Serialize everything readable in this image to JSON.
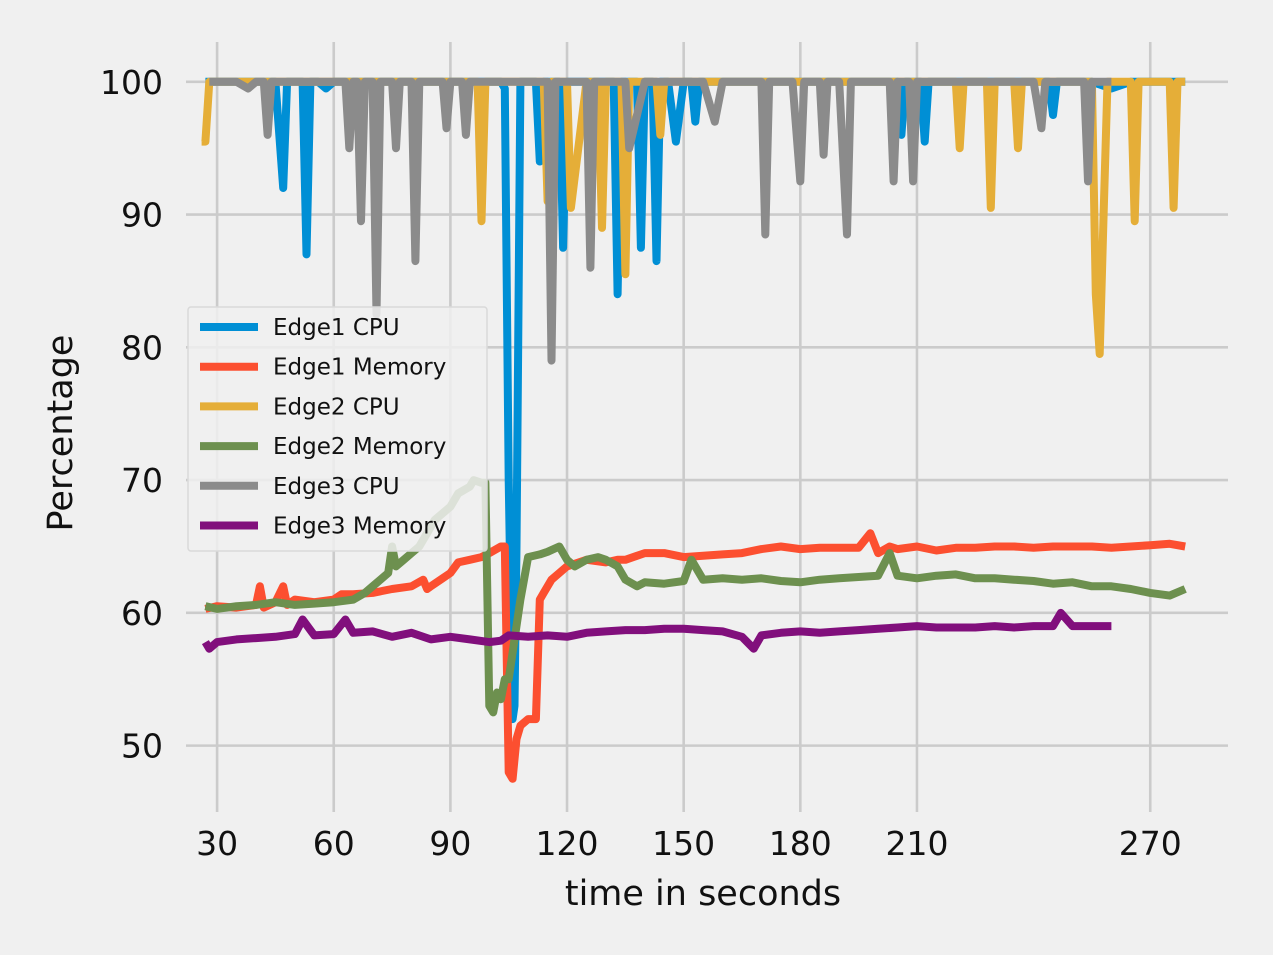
{
  "chart_data": {
    "type": "line",
    "title": "",
    "xlabel": "time in seconds",
    "ylabel": "Percentage",
    "xlim": [
      22,
      290
    ],
    "ylim": [
      45,
      103
    ],
    "xticks": [
      30,
      60,
      90,
      120,
      150,
      180,
      210,
      270
    ],
    "yticks": [
      50,
      60,
      70,
      80,
      90,
      100
    ],
    "grid": true,
    "legend_position": "center-left",
    "series": [
      {
        "name": "Edge1 CPU",
        "color": "#008fd5",
        "x": [
          27,
          45,
          47,
          48,
          49,
          51,
          52,
          53,
          54,
          56,
          58,
          60,
          62,
          65,
          68,
          72,
          76,
          80,
          84,
          88,
          92,
          96,
          100,
          103,
          104,
          105,
          106,
          106.5,
          107,
          108,
          110,
          112,
          113,
          114,
          116,
          118,
          119,
          120,
          122,
          124,
          126,
          128,
          130,
          132,
          133,
          134,
          136,
          138,
          139,
          140,
          142,
          143,
          144,
          146,
          148,
          150,
          152,
          153,
          154,
          156,
          158,
          160,
          165,
          170,
          175,
          180,
          185,
          190,
          195,
          200,
          205,
          206,
          207,
          208,
          210,
          211,
          212,
          213,
          215,
          220,
          225,
          230,
          235,
          240,
          244,
          245,
          246,
          250,
          255,
          260,
          265,
          270,
          275,
          279
        ],
        "y": [
          100,
          100,
          92,
          100,
          100,
          100,
          100,
          87,
          100,
          100,
          99.5,
          100,
          100,
          100,
          100,
          100,
          100,
          100,
          100,
          100,
          100,
          100,
          100,
          100,
          99.5,
          70,
          52,
          53,
          65,
          100,
          100,
          100,
          94,
          100,
          100,
          100,
          87.5,
          100,
          100,
          100,
          100,
          100,
          100,
          100,
          84,
          100,
          100,
          100,
          87.5,
          100,
          100,
          86.5,
          100,
          100,
          95.5,
          100,
          100,
          97,
          100,
          100,
          100,
          100,
          100,
          100,
          100,
          100,
          100,
          100,
          100,
          100,
          100,
          96,
          100,
          100,
          100,
          100,
          95.5,
          100,
          100,
          100,
          100,
          100,
          100,
          100,
          100,
          97.5,
          100,
          100,
          100,
          99.5,
          100,
          100,
          100,
          100
        ]
      },
      {
        "name": "Edge1 Memory",
        "color": "#fc4f30",
        "x": [
          27,
          30,
          35,
          40,
          41,
          42,
          45,
          47,
          48,
          50,
          55,
          60,
          62,
          65,
          70,
          75,
          80,
          83,
          84,
          85,
          88,
          90,
          92,
          95,
          98,
          100,
          103,
          104,
          105,
          106,
          107,
          108,
          110,
          112,
          113,
          114,
          116,
          118,
          120,
          125,
          130,
          133,
          135,
          140,
          145,
          150,
          155,
          160,
          165,
          170,
          175,
          180,
          185,
          190,
          195,
          198,
          200,
          203,
          205,
          210,
          215,
          220,
          225,
          230,
          235,
          240,
          245,
          250,
          255,
          260,
          265,
          270,
          275,
          279
        ],
        "y": [
          60.3,
          60.5,
          60.4,
          60.6,
          62,
          60.4,
          60.8,
          62,
          60.6,
          61,
          60.8,
          61,
          61.4,
          61.4,
          61.5,
          61.8,
          62,
          62.5,
          61.8,
          62,
          62.6,
          63,
          63.8,
          64,
          64.2,
          64.5,
          65,
          65,
          48,
          47.5,
          50.5,
          51.5,
          52,
          52,
          61,
          61.5,
          62.5,
          63,
          63.5,
          64,
          63.8,
          64,
          64,
          64.5,
          64.5,
          64.2,
          64.3,
          64.4,
          64.5,
          64.8,
          65,
          64.8,
          64.9,
          64.9,
          64.9,
          66,
          64.5,
          65,
          64.8,
          65,
          64.7,
          64.9,
          64.9,
          65,
          65,
          64.9,
          65,
          65,
          65,
          64.9,
          65,
          65.1,
          65.2,
          65
        ]
      },
      {
        "name": "Edge2 CPU",
        "color": "#e5ae38",
        "x": [
          26,
          27,
          28,
          30,
          35,
          40,
          45,
          50,
          55,
          60,
          65,
          70,
          75,
          80,
          85,
          90,
          95,
          97,
          98,
          99,
          100,
          103,
          105,
          110,
          114,
          115,
          116,
          117,
          120,
          121,
          125,
          128,
          129,
          130,
          134,
          135,
          136,
          140,
          143,
          144,
          145,
          150,
          155,
          160,
          165,
          170,
          175,
          180,
          185,
          190,
          195,
          200,
          205,
          210,
          215,
          220,
          221,
          222,
          225,
          228,
          229,
          230,
          235,
          236,
          237,
          240,
          245,
          250,
          255,
          256,
          257,
          258,
          259,
          260,
          262,
          265,
          266,
          267,
          270,
          272,
          274,
          275,
          276,
          277,
          279
        ],
        "y": [
          95.5,
          95.5,
          100,
          100,
          100,
          100,
          100,
          100,
          100,
          100,
          100,
          100,
          100,
          100,
          100,
          100,
          100,
          100,
          89.5,
          100,
          100,
          100,
          100,
          100,
          100,
          91,
          100,
          100,
          100,
          90.5,
          100,
          100,
          89,
          100,
          100,
          85.5,
          100,
          100,
          100,
          96,
          100,
          100,
          100,
          100,
          100,
          100,
          100,
          100,
          100,
          100,
          100,
          100,
          100,
          100,
          100,
          100,
          95,
          100,
          100,
          100,
          90.5,
          100,
          100,
          95,
          100,
          100,
          100,
          100,
          100,
          84,
          79.5,
          90,
          100,
          100,
          100,
          100,
          89.5,
          100,
          100,
          100,
          100,
          100,
          90.5,
          100,
          100
        ]
      },
      {
        "name": "Edge2 Memory",
        "color": "#6d904f",
        "x": [
          27,
          30,
          35,
          40,
          45,
          50,
          55,
          60,
          65,
          68,
          70,
          72,
          74,
          75,
          76,
          78,
          80,
          82,
          84,
          86,
          88,
          90,
          92,
          95,
          96,
          98,
          99,
          100,
          101,
          102,
          103,
          104,
          105,
          106,
          107,
          108,
          110,
          113,
          115,
          118,
          120,
          122,
          125,
          128,
          130,
          133,
          135,
          138,
          140,
          145,
          150,
          152,
          155,
          160,
          165,
          170,
          175,
          180,
          185,
          190,
          195,
          200,
          203,
          205,
          210,
          215,
          220,
          225,
          230,
          235,
          240,
          245,
          250,
          255,
          260,
          265,
          270,
          275,
          279
        ],
        "y": [
          60.5,
          60.3,
          60.5,
          60.6,
          60.8,
          60.6,
          60.7,
          60.8,
          61,
          61.5,
          62,
          62.5,
          63,
          65,
          63.5,
          64,
          64.5,
          65,
          66,
          67,
          67.5,
          68,
          69,
          69.5,
          70,
          69.8,
          69.8,
          53,
          52.5,
          54,
          53.5,
          55,
          55,
          57,
          59,
          61,
          64.2,
          64.4,
          64.6,
          65,
          64,
          63.5,
          64,
          64.2,
          64,
          63.5,
          62.5,
          62,
          62.3,
          62.2,
          62.4,
          64,
          62.5,
          62.6,
          62.5,
          62.6,
          62.4,
          62.3,
          62.5,
          62.6,
          62.7,
          62.8,
          64.5,
          62.8,
          62.6,
          62.8,
          62.9,
          62.6,
          62.6,
          62.5,
          62.4,
          62.2,
          62.3,
          62,
          62,
          61.8,
          61.5,
          61.3,
          61.8
        ]
      },
      {
        "name": "Edge3 CPU",
        "color": "#8b8b8b",
        "x": [
          28,
          30,
          35,
          38,
          40,
          42,
          43,
          44,
          45,
          50,
          55,
          58,
          60,
          63,
          64,
          65,
          66,
          67,
          68,
          70,
          71,
          72,
          73,
          75,
          76,
          77,
          78,
          80,
          81,
          82,
          85,
          88,
          89,
          90,
          93,
          94,
          95,
          100,
          101,
          102,
          105,
          110,
          113,
          115,
          116,
          117,
          120,
          123,
          125,
          126,
          127,
          128,
          130,
          133,
          135,
          136,
          140,
          145,
          150,
          155,
          158,
          160,
          163,
          165,
          170,
          171,
          172,
          175,
          178,
          180,
          181,
          182,
          185,
          186,
          187,
          190,
          192,
          193,
          194,
          195,
          200,
          203,
          204,
          205,
          208,
          209,
          210,
          213,
          215,
          220,
          225,
          230,
          235,
          240,
          242,
          243,
          244,
          245,
          250,
          253,
          254,
          255,
          260
        ],
        "y": [
          100,
          100,
          100,
          99.5,
          100,
          100,
          96,
          100,
          100,
          100,
          100,
          100,
          100,
          100,
          95,
          100,
          100,
          89.5,
          100,
          100,
          82.5,
          100,
          100,
          100,
          95,
          100,
          100,
          100,
          86.5,
          100,
          100,
          100,
          96.5,
          100,
          100,
          96,
          100,
          100,
          100,
          100,
          100,
          100,
          100,
          100,
          79,
          100,
          100,
          100,
          100,
          86,
          100,
          100,
          100,
          100,
          100,
          95,
          100,
          100,
          100,
          100,
          97,
          100,
          100,
          100,
          100,
          88.5,
          100,
          100,
          100,
          92.5,
          100,
          100,
          100,
          94.5,
          100,
          100,
          88.5,
          100,
          100,
          100,
          100,
          100,
          92.5,
          100,
          100,
          92.5,
          100,
          100,
          100,
          100,
          100,
          100,
          100,
          100,
          96.5,
          100,
          100,
          100,
          100,
          100,
          92.5,
          100,
          100
        ]
      },
      {
        "name": "Edge3 Memory",
        "color": "#810f7c",
        "x": [
          27,
          28,
          30,
          35,
          40,
          45,
          50,
          52,
          55,
          60,
          63,
          65,
          70,
          75,
          80,
          85,
          90,
          95,
          100,
          103,
          105,
          110,
          115,
          120,
          125,
          130,
          135,
          140,
          145,
          150,
          155,
          160,
          165,
          168,
          170,
          175,
          180,
          185,
          190,
          195,
          200,
          205,
          210,
          215,
          220,
          225,
          230,
          235,
          240,
          245,
          247,
          250,
          255,
          260
        ],
        "y": [
          57.8,
          57.3,
          57.8,
          58,
          58.1,
          58.2,
          58.4,
          59.5,
          58.3,
          58.4,
          59.5,
          58.5,
          58.6,
          58.2,
          58.5,
          58,
          58.2,
          58,
          57.8,
          57.9,
          58.3,
          58.2,
          58.3,
          58.2,
          58.5,
          58.6,
          58.7,
          58.7,
          58.8,
          58.8,
          58.7,
          58.6,
          58.2,
          57.3,
          58.3,
          58.5,
          58.6,
          58.5,
          58.6,
          58.7,
          58.8,
          58.9,
          59,
          58.9,
          58.9,
          58.9,
          59,
          58.9,
          59,
          59,
          60,
          59,
          59,
          59
        ]
      }
    ]
  }
}
